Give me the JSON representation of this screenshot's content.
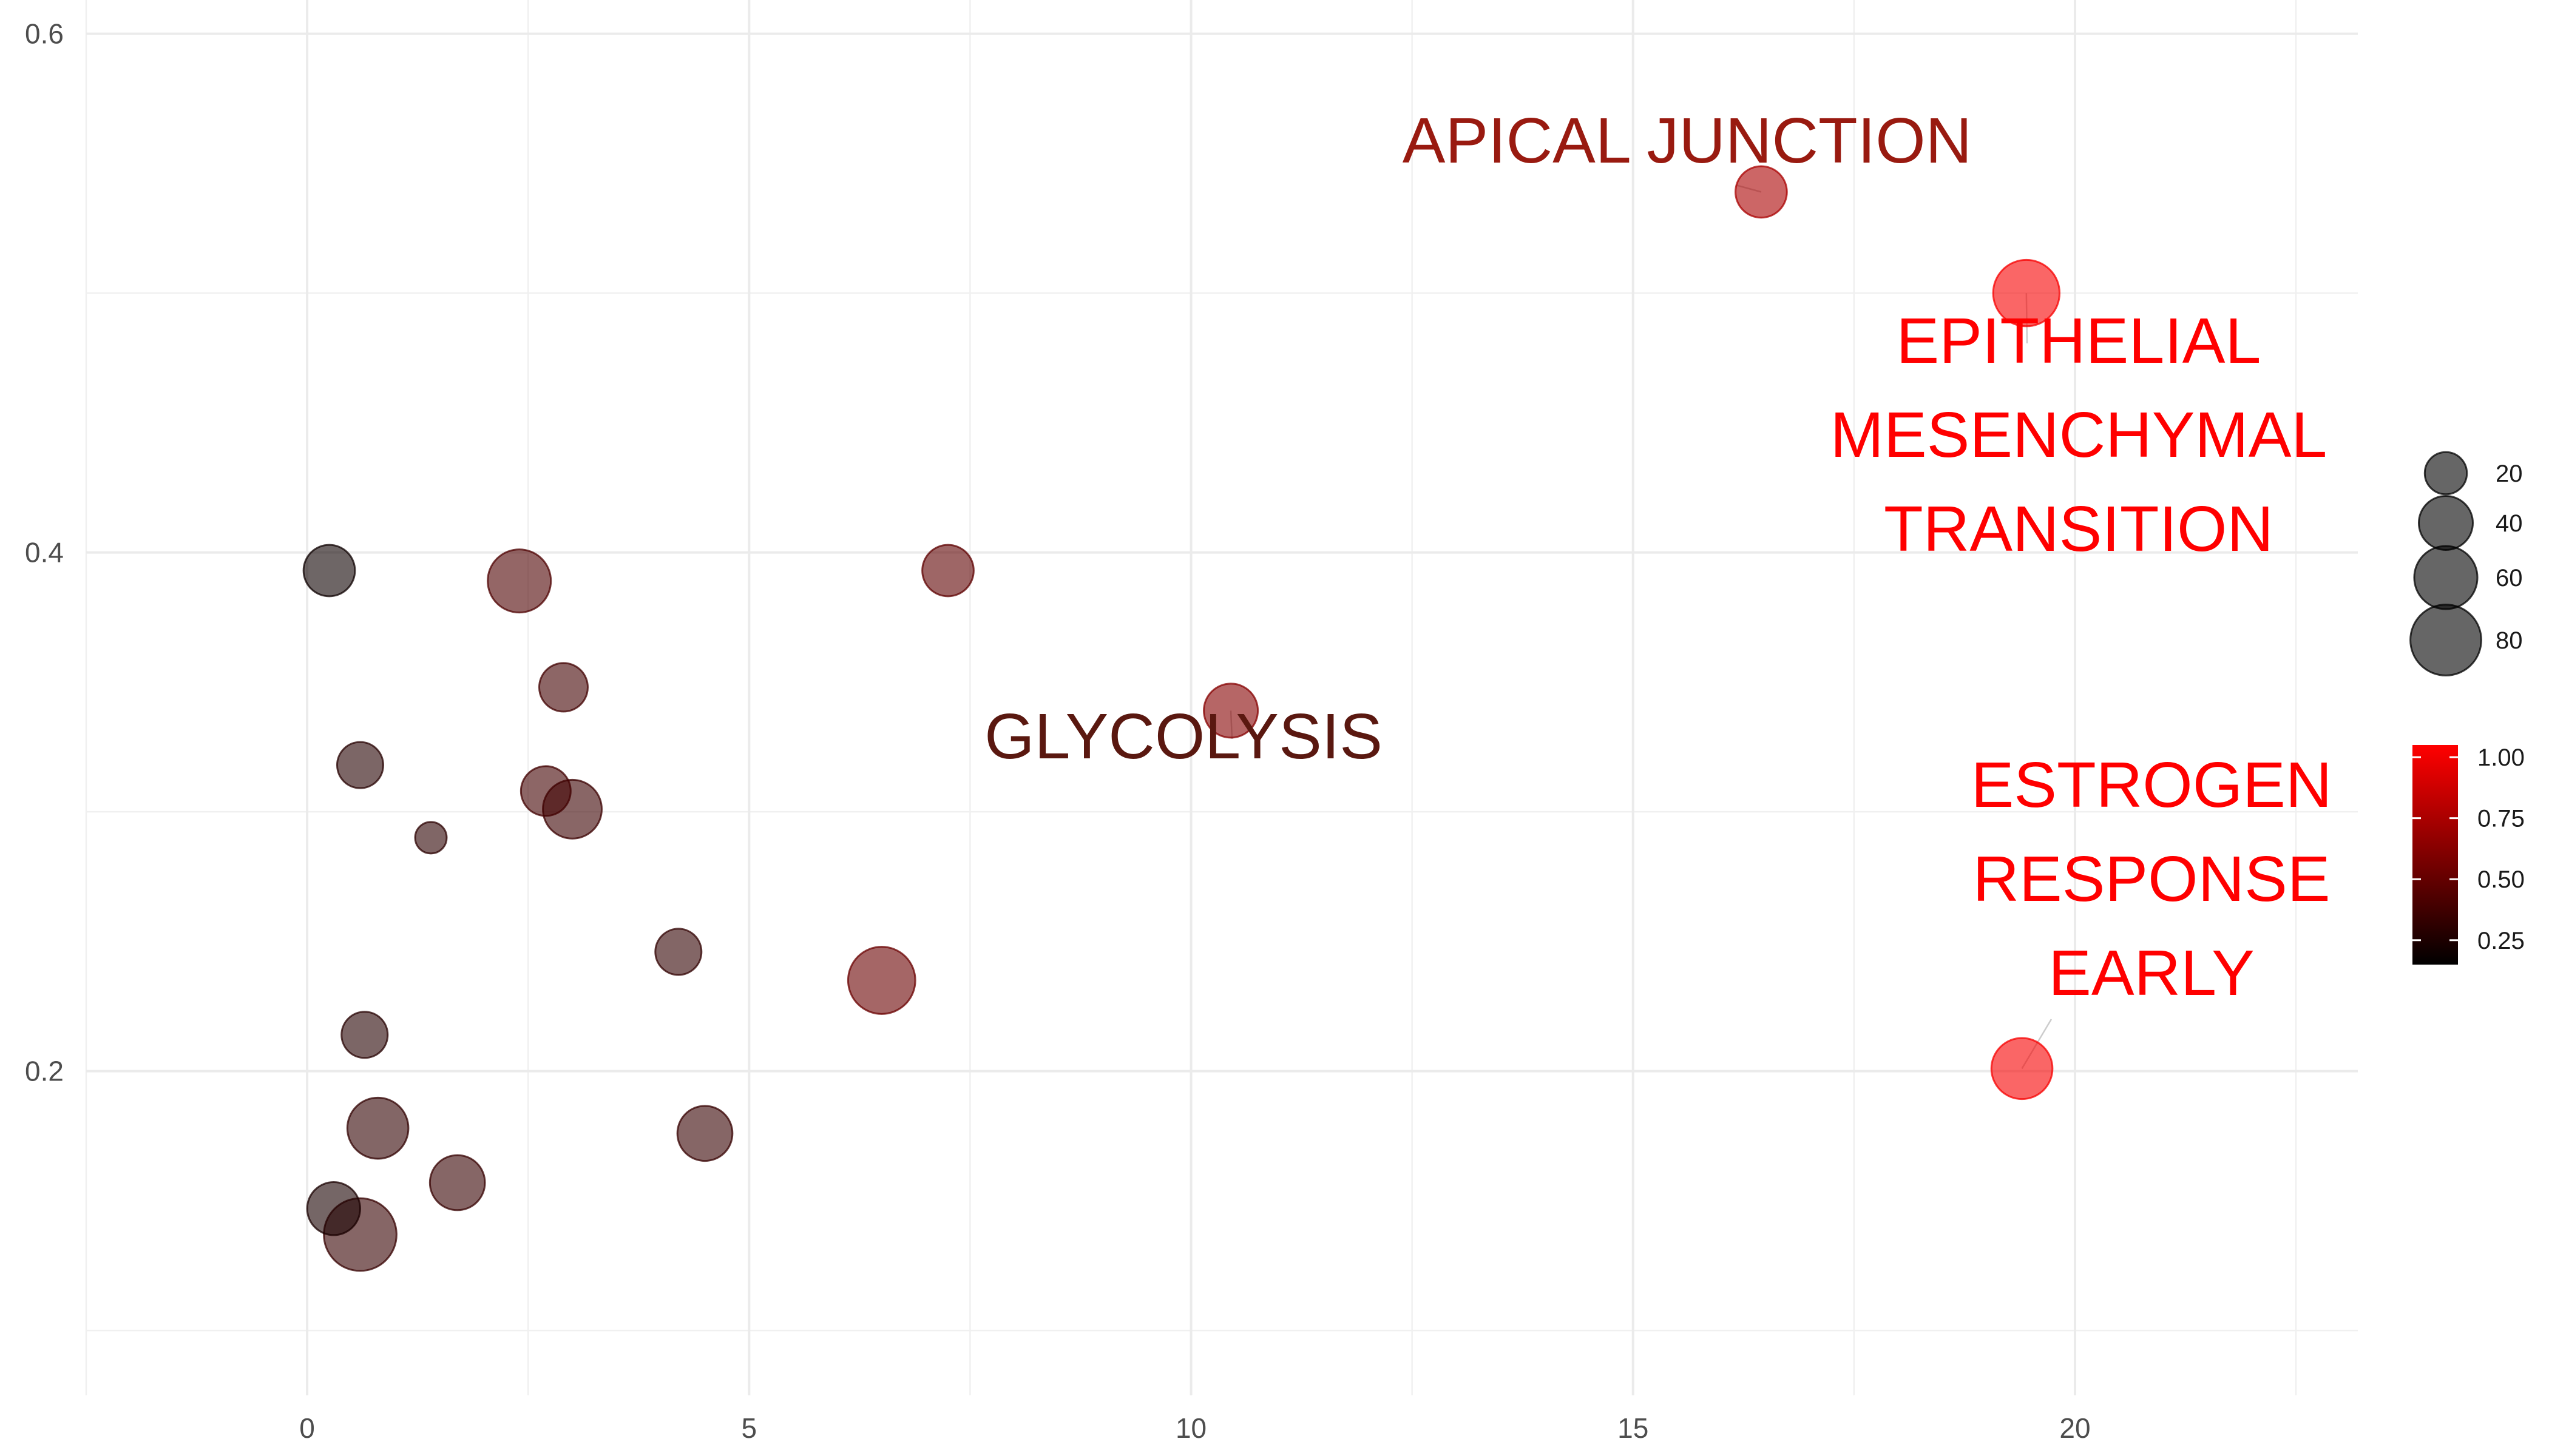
{
  "chart_data": {
    "type": "scatter",
    "title": "",
    "xlabel": "",
    "ylabel": "",
    "xlim": [
      -2.5,
      23.2
    ],
    "ylim": [
      0.075,
      0.613
    ],
    "x_ticks": [
      0,
      5,
      10,
      15,
      20
    ],
    "x_tick_labels": [
      "0",
      "5",
      "10",
      "15",
      "20"
    ],
    "y_ticks": [
      0.2,
      0.4,
      0.6
    ],
    "y_tick_labels": [
      "0.2",
      "0.4",
      "0.6"
    ],
    "grid": true,
    "color_scale": {
      "low": "#000000",
      "high": "#ff0000",
      "range": [
        0.15,
        1.05
      ]
    },
    "points": [
      {
        "x": 0.25,
        "y": 0.393,
        "size": 35,
        "color": 0.2
      },
      {
        "x": 2.4,
        "y": 0.389,
        "size": 60,
        "color": 0.42
      },
      {
        "x": 7.25,
        "y": 0.393,
        "size": 35,
        "color": 0.48
      },
      {
        "x": 2.9,
        "y": 0.348,
        "size": 30,
        "color": 0.38
      },
      {
        "x": 10.45,
        "y": 0.339,
        "size": 40,
        "color": 0.62,
        "label": "GLYCOLYSIS",
        "label_color": "#5a1810"
      },
      {
        "x": 0.6,
        "y": 0.318,
        "size": 26,
        "color": 0.28
      },
      {
        "x": 2.7,
        "y": 0.308,
        "size": 32,
        "color": 0.38
      },
      {
        "x": 3.0,
        "y": 0.301,
        "size": 50,
        "color": 0.36
      },
      {
        "x": 1.4,
        "y": 0.29,
        "size": 8,
        "color": 0.3
      },
      {
        "x": 4.2,
        "y": 0.246,
        "size": 26,
        "color": 0.32
      },
      {
        "x": 6.5,
        "y": 0.235,
        "size": 70,
        "color": 0.52
      },
      {
        "x": 0.65,
        "y": 0.214,
        "size": 26,
        "color": 0.28
      },
      {
        "x": 0.8,
        "y": 0.178,
        "size": 55,
        "color": 0.32
      },
      {
        "x": 4.5,
        "y": 0.176,
        "size": 42,
        "color": 0.34
      },
      {
        "x": 1.7,
        "y": 0.157,
        "size": 42,
        "color": 0.34
      },
      {
        "x": 0.3,
        "y": 0.147,
        "size": 38,
        "color": 0.24
      },
      {
        "x": 0.6,
        "y": 0.137,
        "size": 85,
        "color": 0.34
      },
      {
        "x": 16.45,
        "y": 0.539,
        "size": 35,
        "color": 0.75,
        "label": "APICAL JUNCTION",
        "label_color": "#991a10"
      },
      {
        "x": 19.45,
        "y": 0.5,
        "size": 68,
        "color": 1.02,
        "label": "EPITHELIAL\nMESENCHYMAL\nTRANSITION",
        "label_color": "#ff0000"
      },
      {
        "x": 19.4,
        "y": 0.201,
        "size": 55,
        "color": 1.02,
        "label": "ESTROGEN\nRESPONSE\nEARLY",
        "label_color": "#ff0000"
      }
    ],
    "legend_size": {
      "values": [
        20,
        40,
        60,
        80
      ],
      "labels": [
        "20",
        "40",
        "60",
        "80"
      ],
      "color": "#000000"
    },
    "legend_color": {
      "min": 0.15,
      "max": 1.05,
      "ticks": [
        1.0,
        0.75,
        0.5,
        0.25
      ],
      "tick_labels": [
        "1.00",
        "0.75",
        "0.50",
        "0.25"
      ],
      "low_color": "#000000",
      "high_color": "#ff0000"
    }
  }
}
